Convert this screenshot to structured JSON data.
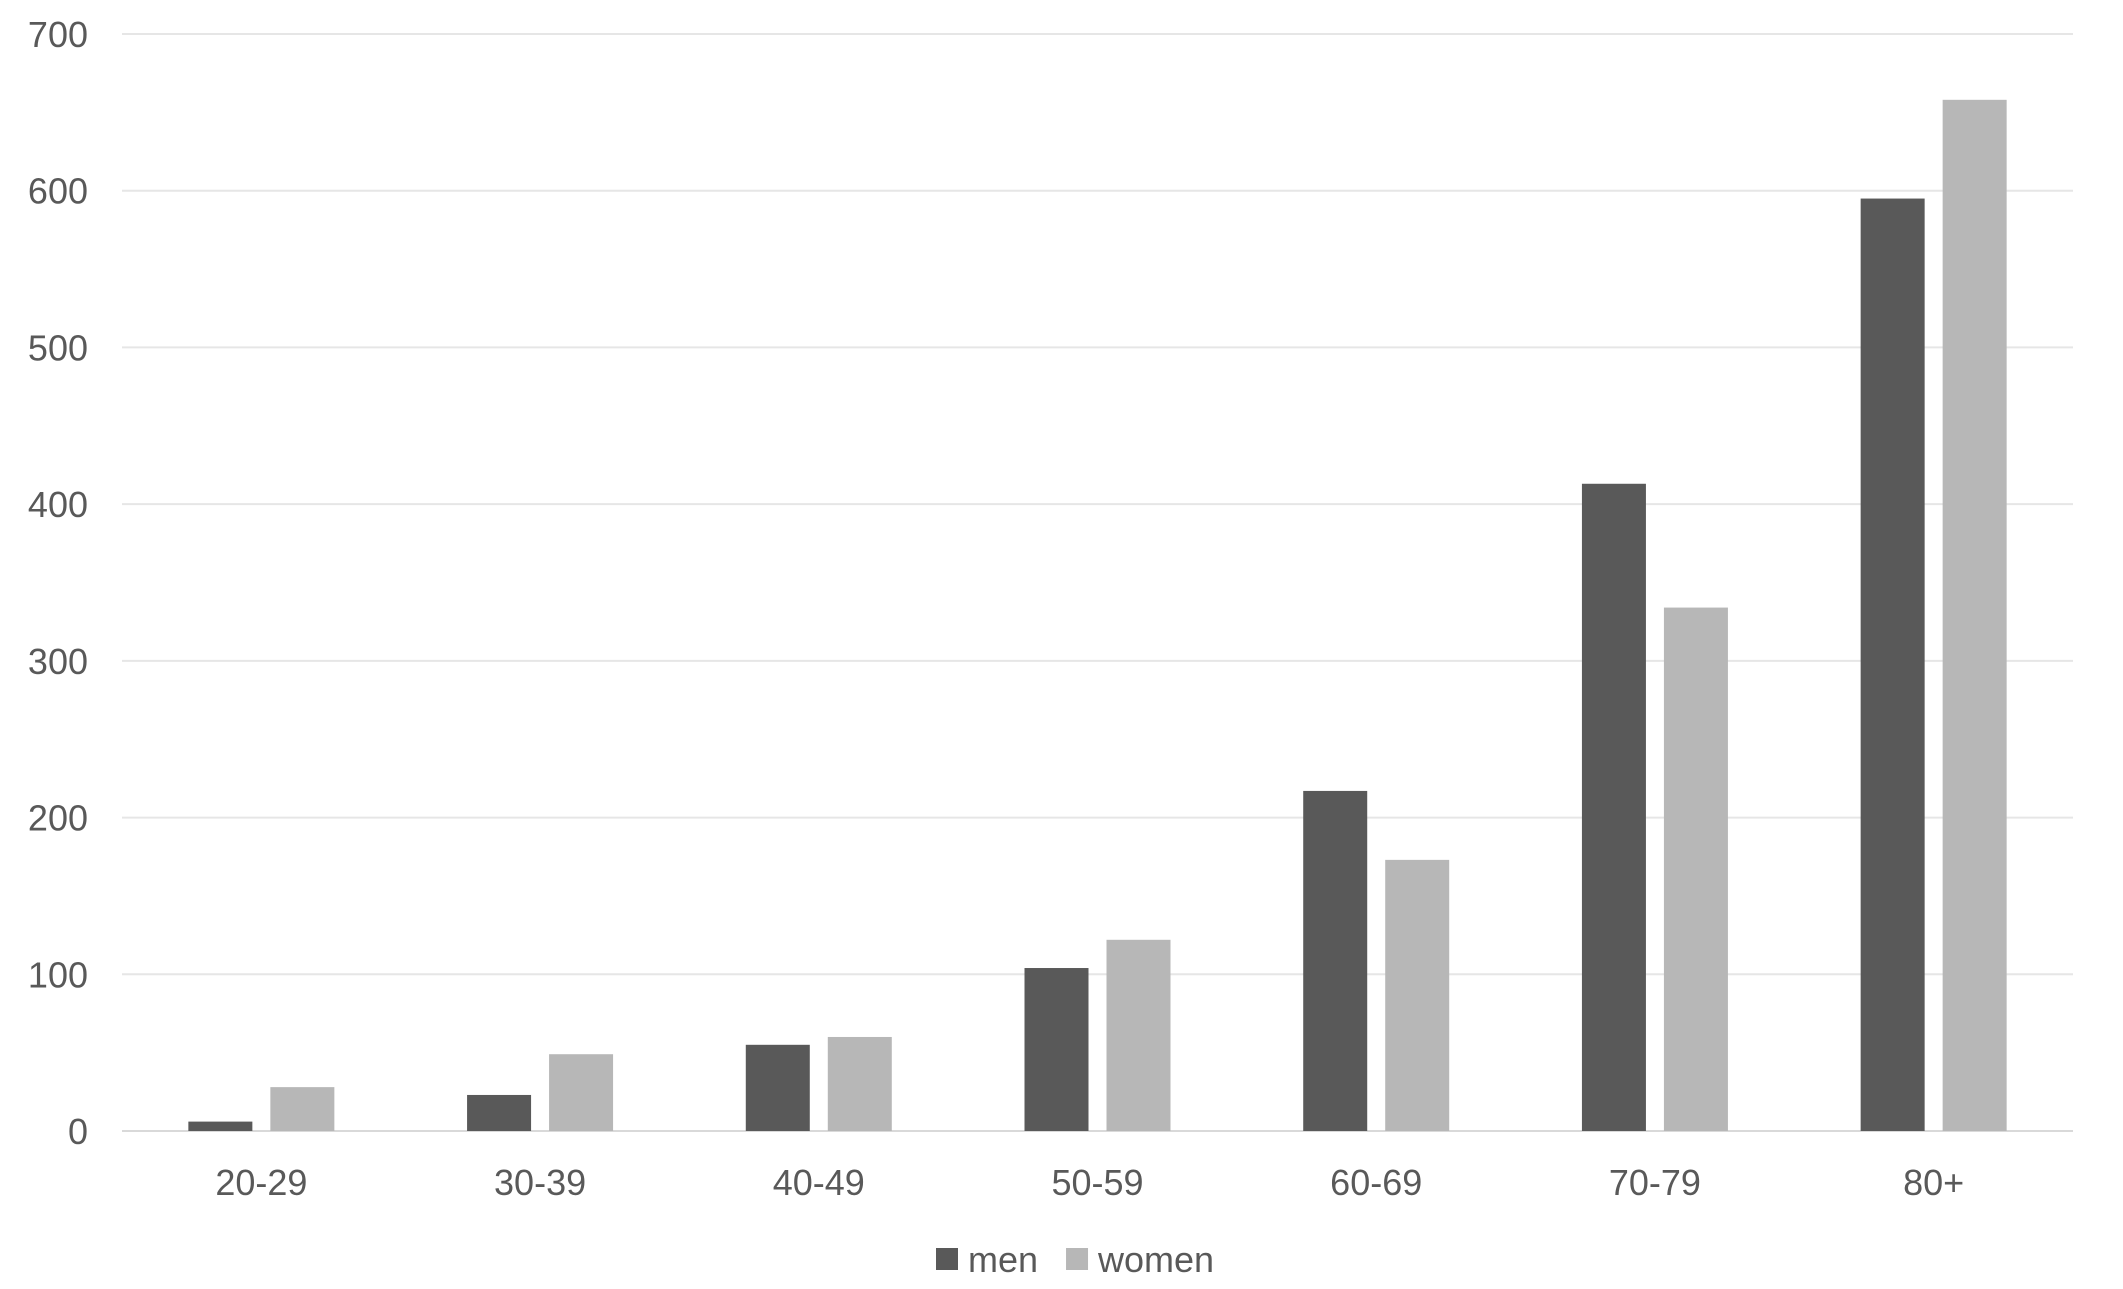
{
  "chart_data": {
    "type": "bar",
    "title": "",
    "xlabel": "",
    "ylabel": "",
    "categories": [
      "20-29",
      "30-39",
      "40-49",
      "50-59",
      "60-69",
      "70-79",
      "80+"
    ],
    "series": [
      {
        "name": "men",
        "color": "#595959",
        "values": [
          6,
          23,
          55,
          104,
          217,
          413,
          595
        ]
      },
      {
        "name": "women",
        "color": "#b7b7b7",
        "values": [
          28,
          49,
          60,
          122,
          173,
          334,
          658
        ]
      }
    ],
    "ylim": [
      0,
      700
    ],
    "yticks": [
      0,
      100,
      200,
      300,
      400,
      500,
      600,
      700
    ],
    "grid": true,
    "legend_position": "bottom"
  }
}
